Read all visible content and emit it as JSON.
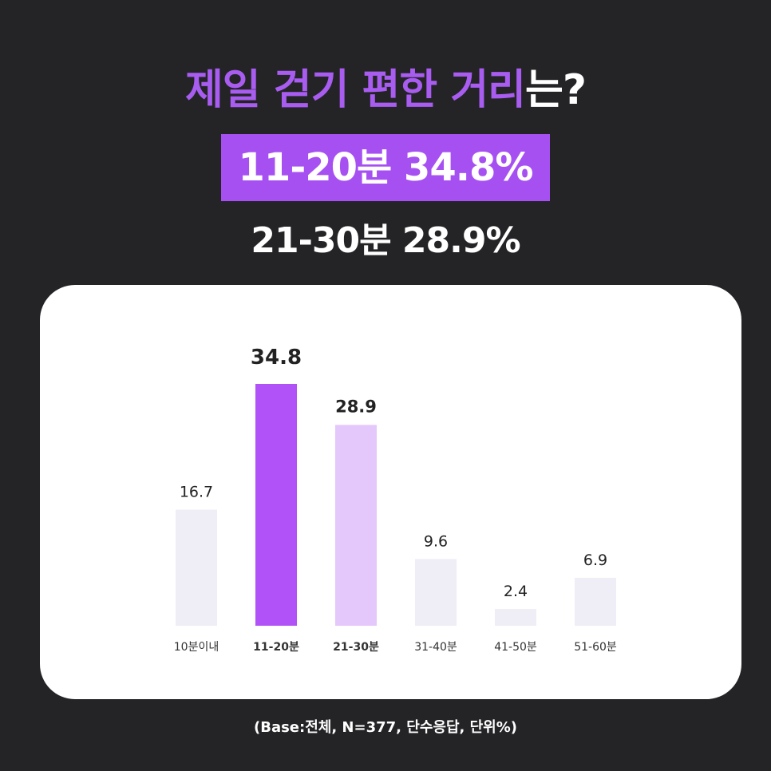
{
  "header": {
    "title_accent": "제일 걷기 편한 거리",
    "title_rest": "는?",
    "highlight_primary": "11-20분 34.8%",
    "highlight_secondary": "21-30분 28.9%"
  },
  "footnote": "(Base:전체, N=377, 단수응답, 단위%)",
  "colors": {
    "background": "#242427",
    "accent": "#a750f2",
    "bar_highlight": "#b052f7",
    "bar_secondary": "#e4c8fc",
    "bar_default": "#efedf6"
  },
  "chart_data": {
    "type": "bar",
    "categories": [
      "10분이내",
      "11-20분",
      "21-30분",
      "31-40분",
      "41-50분",
      "51-60분"
    ],
    "values": [
      16.7,
      34.8,
      28.9,
      9.6,
      2.4,
      6.9
    ],
    "value_labels": [
      "16.7",
      "34.8",
      "28.9",
      "9.6",
      "2.4",
      "6.9"
    ],
    "highlight_index": 1,
    "secondary_index": 2,
    "ylim": [
      0,
      34.8
    ],
    "grid": false
  }
}
